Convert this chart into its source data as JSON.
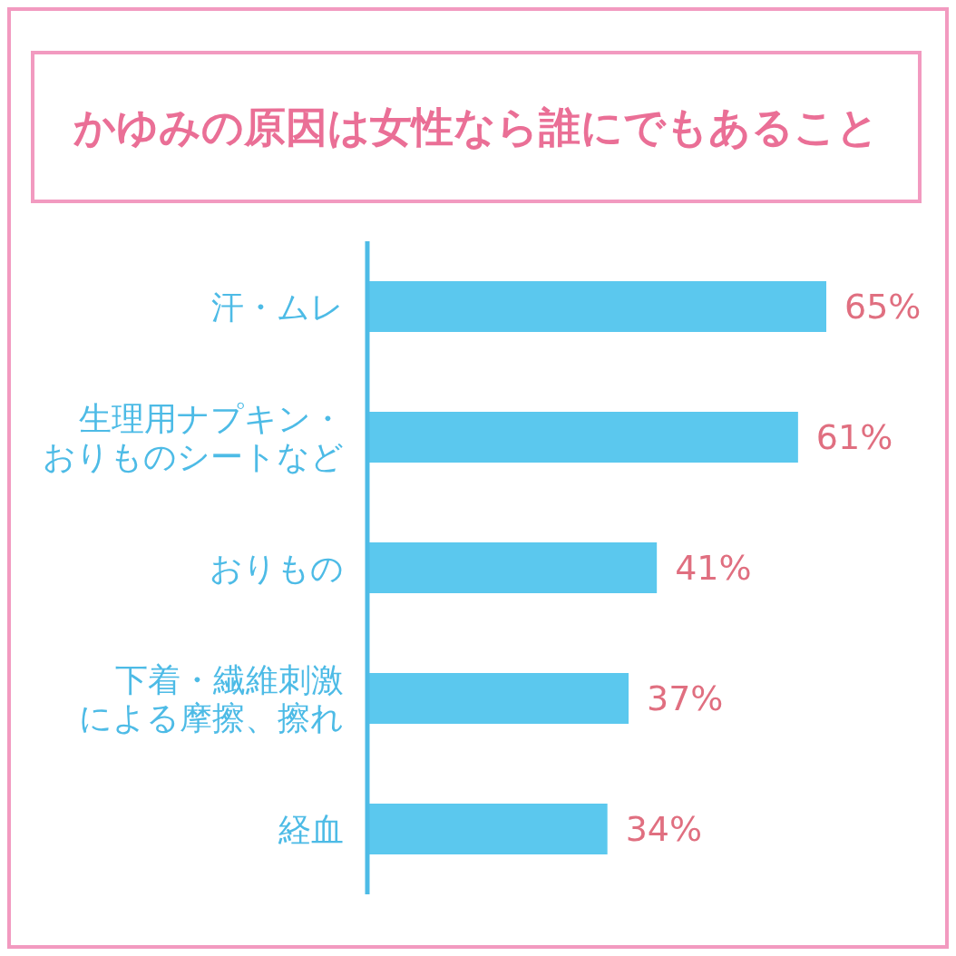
{
  "chart_data": {
    "type": "bar",
    "orientation": "horizontal",
    "title": "かゆみの原因は女性なら誰にでもあること",
    "categories": [
      "汗・ムレ",
      "生理用ナプキン・おりものシートなど",
      "おりもの",
      "下着・繊維刺激による摩擦、擦れ",
      "経血"
    ],
    "values": [
      65,
      61,
      41,
      37,
      34
    ],
    "color": "#5bc8ee",
    "value_labels": [
      "65%",
      "61%",
      "41%",
      "37%",
      "34%"
    ]
  }
}
